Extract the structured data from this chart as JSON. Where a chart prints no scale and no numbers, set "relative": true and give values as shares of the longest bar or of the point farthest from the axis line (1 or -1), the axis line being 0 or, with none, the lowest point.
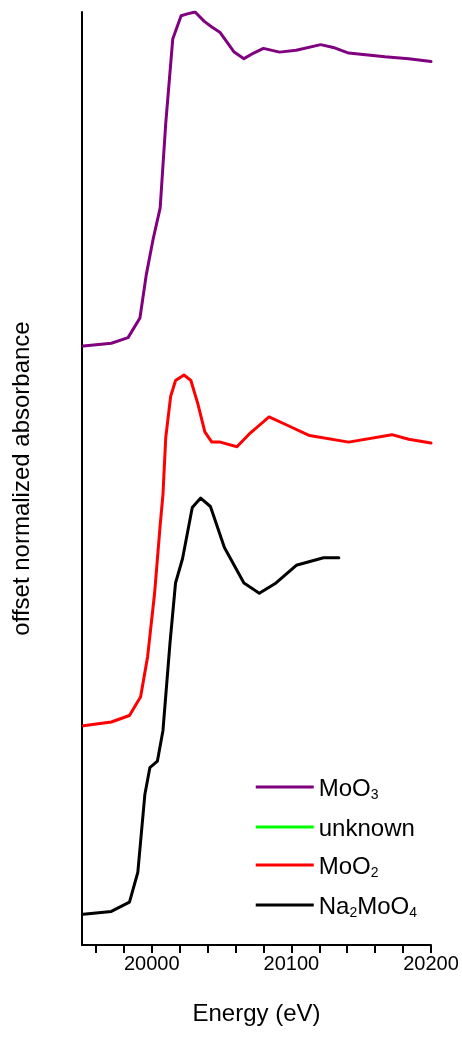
{
  "chart_data": {
    "type": "line",
    "xlabel": "Energy (eV)",
    "ylabel": "offset normalized absorbance",
    "relative": true,
    "legend": "bottom right",
    "marker": "none",
    "line_style": "solid",
    "grid": false,
    "xlim": [
      19950,
      20200
    ],
    "xticks": [
      {
        "value": 19960,
        "label": null
      },
      {
        "value": 19980,
        "label": null
      },
      20000,
      {
        "value": 20020,
        "label": null
      },
      {
        "value": 20040,
        "label": null
      },
      {
        "value": 20060,
        "label": null
      },
      {
        "value": 20080,
        "label": null
      },
      20100,
      {
        "value": 20120,
        "label": null
      },
      {
        "value": 20140,
        "label": null
      },
      {
        "value": 20160,
        "label": null
      },
      {
        "value": 20180,
        "label": null
      },
      20200
    ],
    "series": [
      {
        "name": "MoO$_{3}$",
        "color": "#800080",
        "x": [
          19951,
          19971,
          19983,
          19991.5,
          19996,
          20001,
          20006,
          20010,
          20015,
          20021,
          20025.5,
          20031,
          20037.6,
          20043,
          20049,
          20059,
          20066,
          20073,
          20080,
          20091.5,
          20103.5,
          20121,
          20130,
          20141,
          20167,
          20184,
          20200
        ],
        "values": [
          0.642,
          0.645,
          0.651,
          0.672,
          0.718,
          0.757,
          0.79,
          0.881,
          0.971,
          0.996,
          0.998,
          1.0,
          0.99,
          0.984,
          0.978,
          0.957,
          0.95,
          0.956,
          0.961,
          0.957,
          0.959,
          0.965,
          0.962,
          0.956,
          0.952,
          0.95,
          0.947
        ]
      },
      {
        "name": "unknown",
        "color": "#00ff00"
      },
      {
        "name": "MoO$_{2}$",
        "color": "#ff0000",
        "x": [
          19951,
          19971,
          19984,
          19992,
          19997,
          20002,
          20006,
          20008,
          20010,
          20013.5,
          20017,
          20023,
          20028,
          20033,
          20038,
          20043,
          20049,
          20061,
          20070,
          20084,
          20098.6,
          20113,
          20141,
          20172,
          20184,
          20200
        ],
        "values": [
          0.235,
          0.239,
          0.246,
          0.266,
          0.309,
          0.377,
          0.45,
          0.483,
          0.544,
          0.588,
          0.605,
          0.611,
          0.605,
          0.58,
          0.55,
          0.539,
          0.539,
          0.534,
          0.548,
          0.566,
          0.556,
          0.546,
          0.539,
          0.547,
          0.542,
          0.538
        ]
      },
      {
        "name": "Na$_{2}$MoO$_{4}$",
        "color": "#000000",
        "x": [
          19951,
          19971,
          19984,
          19990,
          19995,
          19998.6,
          20004,
          20008,
          20013,
          20017,
          20022,
          20029,
          20035,
          20042,
          20052,
          20066,
          20077,
          20089,
          20103.5,
          20123,
          20134
        ],
        "values": [
          0.033,
          0.036,
          0.046,
          0.078,
          0.161,
          0.19,
          0.197,
          0.23,
          0.323,
          0.388,
          0.414,
          0.469,
          0.479,
          0.47,
          0.426,
          0.388,
          0.377,
          0.388,
          0.407,
          0.415,
          0.415
        ]
      }
    ]
  }
}
